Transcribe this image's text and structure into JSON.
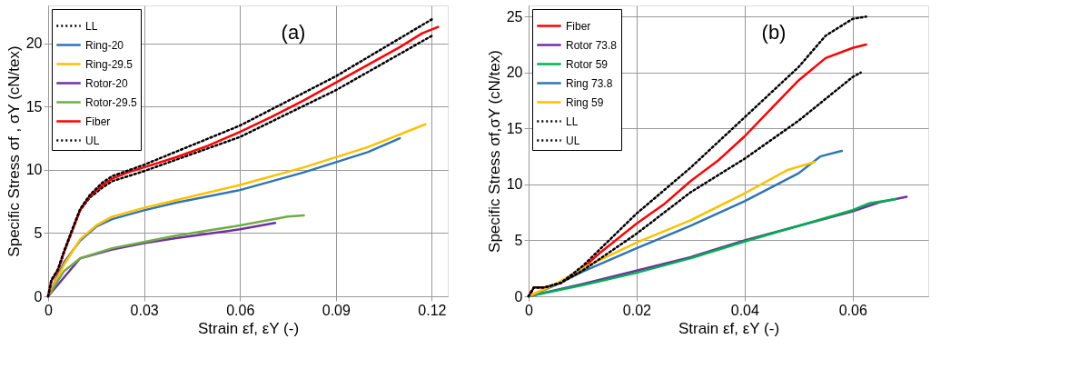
{
  "chart_data": [
    {
      "type": "line",
      "annotations": [
        "(a)"
      ],
      "xlabel": "Strain εf, εY  (-)",
      "ylabel": "Specific Stress σf , σY (cN/tex)",
      "xlim": [
        0,
        0.125
      ],
      "ylim": [
        0,
        23
      ],
      "xticks": [
        0,
        0.03,
        0.06,
        0.09,
        0.12
      ],
      "yticks": [
        0,
        5,
        10,
        15,
        20
      ],
      "grid": true,
      "legend": "top left",
      "series": [
        {
          "name": "LL",
          "color": "#000000",
          "line_style": "dotted",
          "x": [
            0,
            0.001,
            0.003,
            0.005,
            0.008,
            0.01,
            0.013,
            0.017,
            0.02,
            0.03,
            0.06,
            0.09,
            0.12
          ],
          "values": [
            0,
            1.2,
            2,
            3.5,
            5.5,
            6.8,
            7.8,
            8.6,
            9.1,
            9.9,
            12.6,
            16.3,
            20.6
          ]
        },
        {
          "name": "Ring-20",
          "color": "#2e75b6",
          "line_style": "solid",
          "x": [
            0,
            0.005,
            0.01,
            0.015,
            0.02,
            0.03,
            0.04,
            0.06,
            0.08,
            0.1,
            0.11
          ],
          "values": [
            0,
            2.7,
            4.4,
            5.5,
            6.1,
            6.8,
            7.4,
            8.4,
            9.8,
            11.4,
            12.5
          ]
        },
        {
          "name": "Ring-29.5",
          "color": "#ffc000",
          "line_style": "solid",
          "x": [
            0,
            0.005,
            0.01,
            0.015,
            0.02,
            0.03,
            0.04,
            0.06,
            0.08,
            0.1,
            0.118
          ],
          "values": [
            0,
            2.5,
            4.5,
            5.6,
            6.3,
            7,
            7.6,
            8.8,
            10.2,
            11.8,
            13.6
          ]
        },
        {
          "name": "Rotor-20",
          "color": "#7030a0",
          "line_style": "solid",
          "x": [
            0,
            0.01,
            0.02,
            0.03,
            0.04,
            0.06,
            0.071
          ],
          "values": [
            0,
            3,
            3.7,
            4.2,
            4.6,
            5.3,
            5.8
          ]
        },
        {
          "name": "Rotor-29.5",
          "color": "#70ad47",
          "line_style": "solid",
          "x": [
            0,
            0.005,
            0.01,
            0.02,
            0.03,
            0.04,
            0.06,
            0.075,
            0.08
          ],
          "values": [
            0,
            2,
            3,
            3.8,
            4.3,
            4.8,
            5.6,
            6.3,
            6.4
          ]
        },
        {
          "name": "Fiber",
          "color": "#ff0000",
          "line_style": "solid",
          "x": [
            0,
            0.001,
            0.003,
            0.005,
            0.008,
            0.01,
            0.013,
            0.017,
            0.02,
            0.025,
            0.03,
            0.04,
            0.05,
            0.06,
            0.07,
            0.08,
            0.09,
            0.1,
            0.11,
            0.117,
            0.122
          ],
          "values": [
            0,
            1.2,
            2,
            3.5,
            5.5,
            6.8,
            7.9,
            8.8,
            9.3,
            9.8,
            10.2,
            11,
            11.9,
            13,
            14.2,
            15.5,
            16.9,
            18.3,
            19.7,
            20.8,
            21.3
          ]
        },
        {
          "name": "UL",
          "color": "#000000",
          "line_style": "dotted",
          "x": [
            0,
            0.001,
            0.003,
            0.005,
            0.008,
            0.01,
            0.013,
            0.017,
            0.02,
            0.03,
            0.06,
            0.09,
            0.12
          ],
          "values": [
            0,
            1.3,
            2.1,
            3.6,
            5.6,
            6.9,
            8,
            9,
            9.5,
            10.4,
            13.5,
            17.4,
            21.9
          ]
        }
      ]
    },
    {
      "type": "line",
      "annotations": [
        "(b)"
      ],
      "xlabel": "Strain  εf, εY (-)",
      "ylabel": "Specific Stress σf,σY  (cN/tex)",
      "xlim": [
        0,
        0.074
      ],
      "ylim": [
        0,
        26
      ],
      "xticks": [
        0,
        0.02,
        0.04,
        0.06
      ],
      "yticks": [
        0,
        5,
        10,
        15,
        20,
        25
      ],
      "grid": true,
      "legend": "top left",
      "series": [
        {
          "name": "Fiber",
          "color": "#ff0000",
          "line_style": "solid",
          "x": [
            0,
            0.001,
            0.003,
            0.006,
            0.01,
            0.013,
            0.02,
            0.025,
            0.03,
            0.035,
            0.04,
            0.045,
            0.05,
            0.055,
            0.06,
            0.0625
          ],
          "values": [
            0,
            0.8,
            0.8,
            1.2,
            2.5,
            3.8,
            6.5,
            8.2,
            10.3,
            12.1,
            14.3,
            16.8,
            19.3,
            21.3,
            22.2,
            22.5
          ]
        },
        {
          "name": "Rotor 73.8",
          "color": "#7030a0",
          "line_style": "solid",
          "x": [
            0,
            0.01,
            0.02,
            0.03,
            0.04,
            0.05,
            0.06,
            0.065,
            0.07
          ],
          "values": [
            0,
            1.1,
            2.3,
            3.5,
            5,
            6.3,
            7.6,
            8.4,
            8.9
          ]
        },
        {
          "name": "Rotor 59",
          "color": "#00b050",
          "line_style": "solid",
          "x": [
            0,
            0.01,
            0.02,
            0.03,
            0.04,
            0.05,
            0.06,
            0.063,
            0.068
          ],
          "values": [
            0,
            1,
            2.1,
            3.4,
            4.9,
            6.3,
            7.7,
            8.3,
            8.7
          ]
        },
        {
          "name": "Ring 73.8",
          "color": "#2e75b6",
          "line_style": "solid",
          "x": [
            0,
            0.005,
            0.01,
            0.02,
            0.03,
            0.04,
            0.05,
            0.054,
            0.058
          ],
          "values": [
            0,
            1,
            2.2,
            4.3,
            6.3,
            8.5,
            11,
            12.5,
            13
          ]
        },
        {
          "name": "Ring 59",
          "color": "#ffc000",
          "line_style": "solid",
          "x": [
            0,
            0.005,
            0.01,
            0.02,
            0.03,
            0.04,
            0.048,
            0.053
          ],
          "values": [
            0,
            1.1,
            2.5,
            4.8,
            6.8,
            9.2,
            11.3,
            12
          ]
        },
        {
          "name": "LL",
          "color": "#000000",
          "line_style": "dotted",
          "x": [
            0,
            0.001,
            0.003,
            0.006,
            0.01,
            0.02,
            0.03,
            0.04,
            0.05,
            0.055,
            0.06,
            0.0625
          ],
          "values": [
            0,
            0.8,
            0.8,
            1.2,
            2.7,
            7.4,
            11.5,
            16,
            20.5,
            23.3,
            24.8,
            25
          ]
        },
        {
          "name": "UL",
          "color": "#000000",
          "line_style": "dotted",
          "x": [
            0,
            0.001,
            0.003,
            0.006,
            0.01,
            0.02,
            0.03,
            0.04,
            0.05,
            0.06,
            0.0615
          ],
          "values": [
            0,
            0.8,
            0.8,
            1.2,
            2.3,
            5.6,
            9.3,
            12.3,
            15.7,
            19.6,
            20
          ]
        }
      ]
    }
  ]
}
